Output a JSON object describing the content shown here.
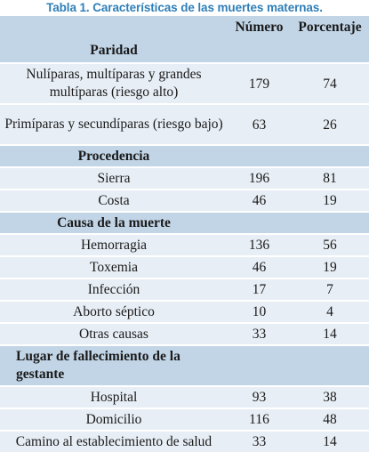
{
  "caption": "Tabla 1. Características de las muertes maternas.",
  "table": {
    "header": {
      "numero": "Número",
      "porcentaje": "Porcentaje"
    },
    "sections": [
      {
        "title": "Paridad",
        "rows": [
          {
            "label": "Nulíparas, multíparas y grandes multíparas (riesgo alto)",
            "numero": "179",
            "porcentaje": "74"
          },
          {
            "label": "Primíparas y secundíparas (riesgo bajo)",
            "numero": "63",
            "porcentaje": "26"
          }
        ]
      },
      {
        "title": "Procedencia",
        "rows": [
          {
            "label": "Sierra",
            "numero": "196",
            "porcentaje": "81"
          },
          {
            "label": "Costa",
            "numero": "46",
            "porcentaje": "19"
          }
        ]
      },
      {
        "title": "Causa de la muerte",
        "rows": [
          {
            "label": "Hemorragia",
            "numero": "136",
            "porcentaje": "56"
          },
          {
            "label": "Toxemia",
            "numero": "46",
            "porcentaje": "19"
          },
          {
            "label": "Infección",
            "numero": "17",
            "porcentaje": "7"
          },
          {
            "label": "Aborto séptico",
            "numero": "10",
            "porcentaje": "4"
          },
          {
            "label": "Otras causas",
            "numero": "33",
            "porcentaje": "14"
          }
        ]
      },
      {
        "title": "Lugar de fallecimiento de la gestante",
        "rows": [
          {
            "label": "Hospital",
            "numero": "93",
            "porcentaje": "38"
          },
          {
            "label": "Domicilio",
            "numero": "116",
            "porcentaje": "48"
          },
          {
            "label": "Camino al establecimiento de salud",
            "numero": "33",
            "porcentaje": "14"
          }
        ]
      }
    ]
  }
}
